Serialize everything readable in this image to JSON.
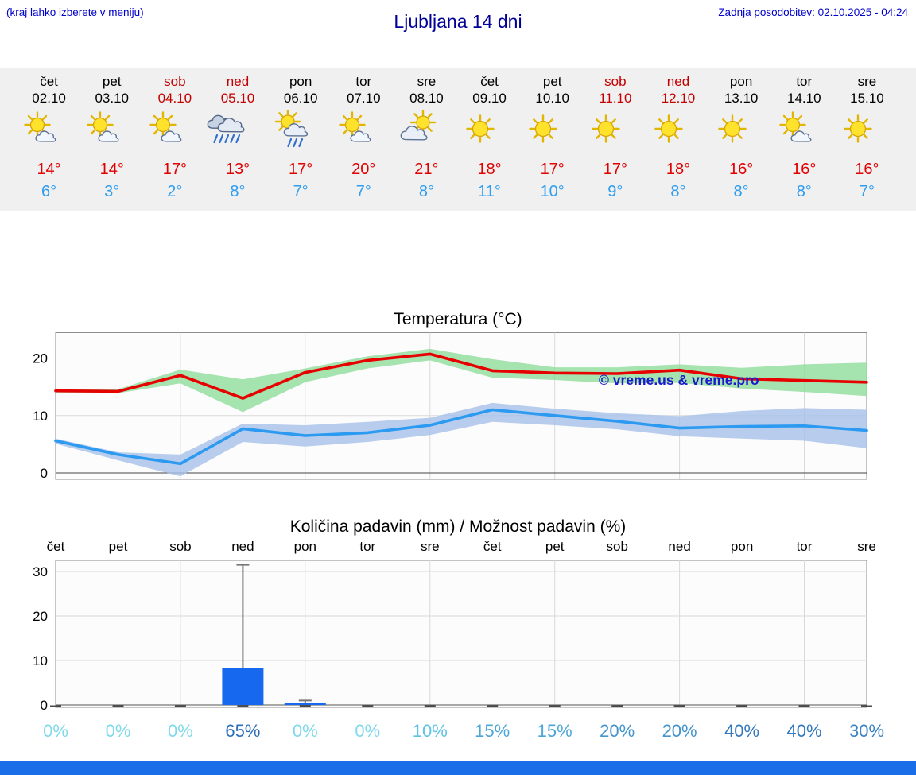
{
  "header": {
    "menu_hint": "(kraj lahko izberete v meniju)",
    "title": "Ljubljana 14 dni",
    "last_update": "Zadnja posodobitev: 02.10.2025 - 04:24"
  },
  "forecast": {
    "days": [
      {
        "name": "čet",
        "date": "02.10",
        "weekend": false,
        "icon": "sun-small-cloud",
        "tmax": "14°",
        "tmin": "6°"
      },
      {
        "name": "pet",
        "date": "03.10",
        "weekend": false,
        "icon": "sun-small-cloud",
        "tmax": "14°",
        "tmin": "3°"
      },
      {
        "name": "sob",
        "date": "04.10",
        "weekend": true,
        "icon": "sun-small-cloud",
        "tmax": "17°",
        "tmin": "2°"
      },
      {
        "name": "ned",
        "date": "05.10",
        "weekend": true,
        "icon": "rain-heavy",
        "tmax": "13°",
        "tmin": "8°"
      },
      {
        "name": "pon",
        "date": "06.10",
        "weekend": false,
        "icon": "sun-rain",
        "tmax": "17°",
        "tmin": "7°"
      },
      {
        "name": "tor",
        "date": "07.10",
        "weekend": false,
        "icon": "sun-small-cloud",
        "tmax": "20°",
        "tmin": "7°"
      },
      {
        "name": "sre",
        "date": "08.10",
        "weekend": false,
        "icon": "cloud-sun",
        "tmax": "21°",
        "tmin": "8°"
      },
      {
        "name": "čet",
        "date": "09.10",
        "weekend": false,
        "icon": "sun",
        "tmax": "18°",
        "tmin": "11°"
      },
      {
        "name": "pet",
        "date": "10.10",
        "weekend": false,
        "icon": "sun",
        "tmax": "17°",
        "tmin": "10°"
      },
      {
        "name": "sob",
        "date": "11.10",
        "weekend": true,
        "icon": "sun",
        "tmax": "17°",
        "tmin": "9°"
      },
      {
        "name": "ned",
        "date": "12.10",
        "weekend": true,
        "icon": "sun",
        "tmax": "18°",
        "tmin": "8°"
      },
      {
        "name": "pon",
        "date": "13.10",
        "weekend": false,
        "icon": "sun",
        "tmax": "16°",
        "tmin": "8°"
      },
      {
        "name": "tor",
        "date": "14.10",
        "weekend": false,
        "icon": "sun-small-cloud",
        "tmax": "16°",
        "tmin": "8°"
      },
      {
        "name": "sre",
        "date": "15.10",
        "weekend": false,
        "icon": "sun",
        "tmax": "16°",
        "tmin": "7°"
      }
    ]
  },
  "chart_data": [
    {
      "type": "line",
      "title": "Temperatura (°C)",
      "x": [
        "čet",
        "pet",
        "sob",
        "ned",
        "pon",
        "tor",
        "sre",
        "čet",
        "pet",
        "sob",
        "ned",
        "pon",
        "tor",
        "sre"
      ],
      "ylim": [
        -1.5,
        24.5
      ],
      "yticks": [
        0,
        10,
        20
      ],
      "grid": true,
      "legend_position": "none",
      "watermark": "© vreme.us & vreme.pro",
      "series": [
        {
          "name": "max temperature",
          "color": "#e60000",
          "band_color": "#8fdc9b",
          "values": [
            14.3,
            14.2,
            17.0,
            13.0,
            17.5,
            19.6,
            20.7,
            17.8,
            17.4,
            17.3,
            17.9,
            16.4,
            16.1,
            15.8
          ],
          "band_upper": [
            14.6,
            14.6,
            18.0,
            16.3,
            18.2,
            20.3,
            21.6,
            19.8,
            18.4,
            18.4,
            18.9,
            18.3,
            18.9,
            19.2
          ],
          "band_lower": [
            14.0,
            13.9,
            15.6,
            10.6,
            15.8,
            18.2,
            19.6,
            16.6,
            16.2,
            15.6,
            15.7,
            14.7,
            14.1,
            13.4
          ]
        },
        {
          "name": "min temperature",
          "color": "#2b9af0",
          "band_color": "#a6c1e8",
          "values": [
            5.6,
            3.2,
            1.6,
            7.7,
            6.5,
            7.0,
            8.3,
            11.0,
            10.0,
            9.0,
            7.8,
            8.1,
            8.2,
            7.4
          ],
          "band_upper": [
            6.0,
            3.6,
            3.2,
            8.6,
            8.3,
            8.9,
            9.6,
            12.2,
            11.2,
            10.4,
            9.9,
            10.8,
            11.3,
            11.0
          ],
          "band_lower": [
            5.1,
            2.2,
            -0.6,
            5.4,
            4.6,
            5.4,
            6.6,
            8.9,
            8.3,
            7.6,
            6.4,
            6.0,
            5.6,
            4.3
          ]
        }
      ]
    },
    {
      "type": "bar",
      "title": "Količina padavin (mm) / Možnost padavin (%)",
      "categories": [
        "čet",
        "pet",
        "sob",
        "ned",
        "pon",
        "tor",
        "sre",
        "čet",
        "pet",
        "sob",
        "ned",
        "pon",
        "tor",
        "sre"
      ],
      "precip_mm": [
        0,
        0,
        0,
        8.3,
        0.4,
        0,
        0,
        0,
        0,
        0,
        0,
        0,
        0,
        0
      ],
      "precip_max_mm": [
        0,
        0,
        0,
        31.5,
        1.0,
        0,
        0,
        0,
        0,
        0,
        0,
        0,
        0,
        0
      ],
      "probability_pct": [
        0,
        0,
        0,
        65,
        0,
        0,
        10,
        15,
        15,
        20,
        20,
        40,
        40,
        30
      ],
      "probability_labels": [
        "0%",
        "0%",
        "0%",
        "65%",
        "0%",
        "0%",
        "10%",
        "15%",
        "15%",
        "20%",
        "20%",
        "40%",
        "40%",
        "30%"
      ],
      "probability_colors": [
        "#7fd9ea",
        "#7fd9ea",
        "#7fd9ea",
        "#2e6fba",
        "#7fd9ea",
        "#7fd9ea",
        "#5fc3e3",
        "#4da6d8",
        "#4da6d8",
        "#4494ce",
        "#4494ce",
        "#3377bd",
        "#3377bd",
        "#3a83c3"
      ],
      "ylim": [
        0,
        33
      ],
      "yticks": [
        0,
        10,
        20,
        30
      ],
      "bar_color": "#1668ee",
      "error_bar_color": "#777777"
    }
  ],
  "footer": {
    "bar_color": "#1a6fe8"
  }
}
